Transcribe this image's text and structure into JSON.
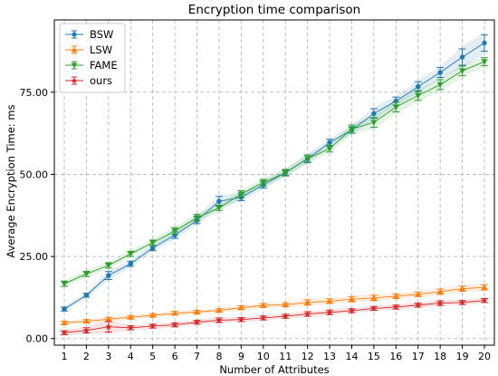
{
  "chart_data": {
    "type": "line",
    "title": "Encryption time comparison",
    "xlabel": "Number of Attributes",
    "ylabel": "Average Encryption Time: ms",
    "x": [
      1,
      2,
      3,
      4,
      5,
      6,
      7,
      8,
      9,
      10,
      11,
      12,
      13,
      14,
      15,
      16,
      17,
      18,
      19,
      20
    ],
    "xlim": [
      0.55,
      20.45
    ],
    "ylim": [
      -2,
      97
    ],
    "y_ticks": [
      0,
      25,
      50,
      75
    ],
    "y_tick_labels": [
      "0.00",
      "25.00",
      "50.00",
      "75.00"
    ],
    "grid": true,
    "legend_position": "top-left",
    "series": [
      {
        "name": "BSW",
        "color": "#1f77b4",
        "marker": "circle",
        "values": [
          9.0,
          13.2,
          19.2,
          22.8,
          27.6,
          31.5,
          36.0,
          41.8,
          43.0,
          46.8,
          50.5,
          54.7,
          59.7,
          63.5,
          68.5,
          72.3,
          76.7,
          81.0,
          85.7,
          90.0
        ],
        "errors": [
          0.6,
          0.6,
          1.2,
          0.8,
          0.8,
          1.0,
          1.0,
          1.5,
          1.0,
          1.0,
          0.8,
          1.2,
          1.0,
          1.0,
          1.5,
          1.2,
          1.5,
          1.5,
          2.5,
          2.5
        ]
      },
      {
        "name": "LSW",
        "color": "#ff7f0e",
        "marker": "triangle-up",
        "values": [
          4.8,
          5.3,
          5.9,
          6.5,
          7.1,
          7.7,
          8.1,
          8.6,
          9.4,
          10.1,
          10.3,
          11.0,
          11.4,
          12.0,
          12.4,
          12.9,
          13.5,
          14.3,
          15.2,
          15.6
        ],
        "errors": [
          0.5,
          0.5,
          0.6,
          0.5,
          0.5,
          0.6,
          0.5,
          0.5,
          0.6,
          0.6,
          0.6,
          0.8,
          0.7,
          0.8,
          0.8,
          0.7,
          0.7,
          0.8,
          0.8,
          0.8
        ]
      },
      {
        "name": "FAME",
        "color": "#2ca02c",
        "marker": "triangle-down",
        "values": [
          16.7,
          19.7,
          22.3,
          25.8,
          29.2,
          32.8,
          36.8,
          39.8,
          44.0,
          47.5,
          50.5,
          54.8,
          57.8,
          63.8,
          65.8,
          70.5,
          74.0,
          77.3,
          81.5,
          84.3
        ],
        "errors": [
          0.8,
          0.8,
          0.8,
          0.8,
          0.8,
          1.0,
          1.0,
          0.8,
          1.0,
          1.0,
          1.0,
          1.0,
          1.0,
          1.2,
          1.5,
          1.5,
          1.5,
          1.5,
          1.5,
          1.2
        ]
      },
      {
        "name": "ours",
        "color": "#d62728",
        "marker": "star",
        "values": [
          1.8,
          2.5,
          3.6,
          3.3,
          3.8,
          4.2,
          5.0,
          5.6,
          5.8,
          6.3,
          6.8,
          7.5,
          8.0,
          8.5,
          9.2,
          9.6,
          10.2,
          10.8,
          11.0,
          11.6
        ],
        "errors": [
          0.6,
          0.8,
          1.6,
          0.6,
          0.6,
          0.6,
          0.6,
          0.7,
          0.6,
          0.6,
          0.6,
          0.7,
          0.7,
          0.6,
          0.6,
          0.6,
          0.6,
          0.7,
          0.6,
          0.6
        ]
      }
    ]
  }
}
